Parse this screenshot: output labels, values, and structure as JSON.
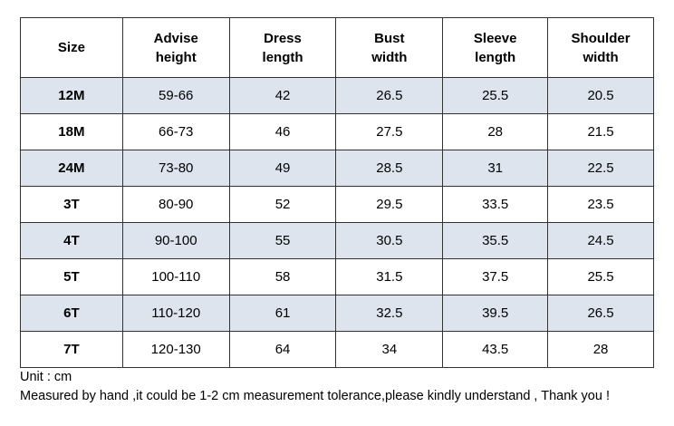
{
  "table": {
    "header": [
      "Size",
      "Advise height",
      "Dress length",
      "Bust width",
      "Sleeve length",
      "Shoulder width"
    ],
    "rows": [
      [
        "12M",
        "59-66",
        "42",
        "26.5",
        "25.5",
        "20.5"
      ],
      [
        "18M",
        "66-73",
        "46",
        "27.5",
        "28",
        "21.5"
      ],
      [
        "24M",
        "73-80",
        "49",
        "28.5",
        "31",
        "22.5"
      ],
      [
        "3T",
        "80-90",
        "52",
        "29.5",
        "33.5",
        "23.5"
      ],
      [
        "4T",
        "90-100",
        "55",
        "30.5",
        "35.5",
        "24.5"
      ],
      [
        "5T",
        "100-110",
        "58",
        "31.5",
        "37.5",
        "25.5"
      ],
      [
        "6T",
        "110-120",
        "61",
        "32.5",
        "39.5",
        "26.5"
      ],
      [
        "7T",
        "120-130",
        "64",
        "34",
        "43.5",
        "28"
      ]
    ]
  },
  "notes": [
    "Unit : cm",
    "Measured by hand ,it could be 1-2 cm measurement tolerance,please kindly understand , Thank you !"
  ]
}
